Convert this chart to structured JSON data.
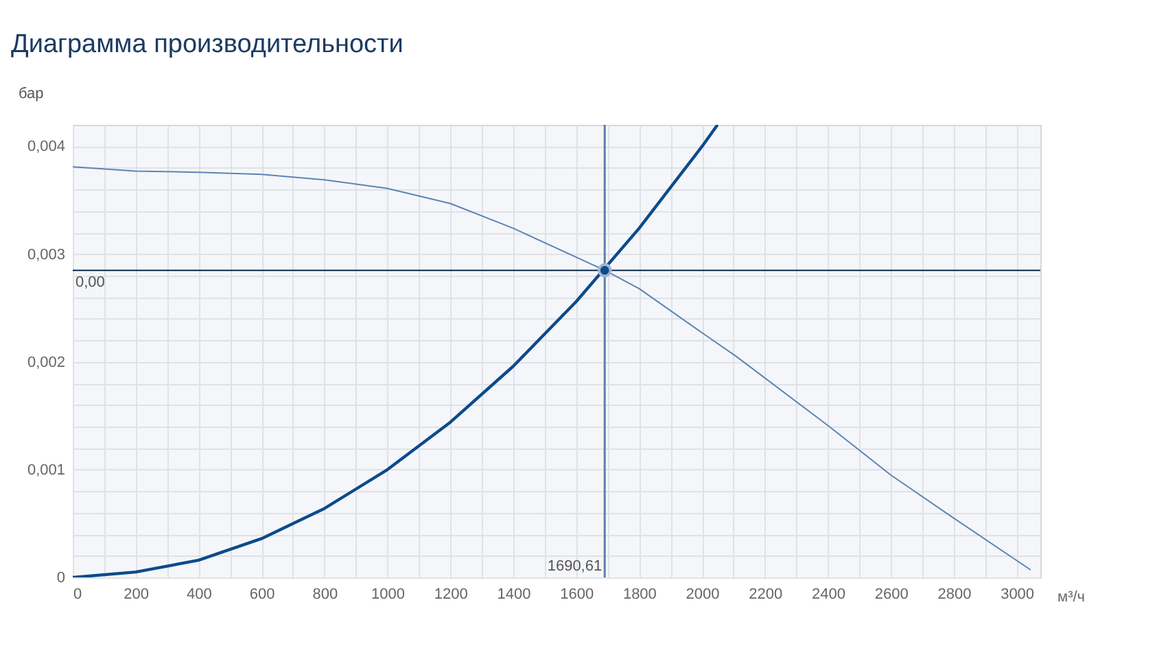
{
  "chart_data": {
    "type": "line",
    "title": "Диаграмма производительности",
    "xlabel": "м³/ч",
    "ylabel": "бар",
    "xlim": [
      0,
      3075
    ],
    "ylim": [
      0,
      0.0042
    ],
    "xticks": [
      0,
      {
        "value": 100,
        "label": null
      },
      200,
      {
        "value": 300,
        "label": null
      },
      400,
      {
        "value": 500,
        "label": null
      },
      600,
      {
        "value": 700,
        "label": null
      },
      800,
      {
        "value": 900,
        "label": null
      },
      1000,
      {
        "value": 1100,
        "label": null
      },
      1200,
      {
        "value": 1300,
        "label": null
      },
      1400,
      {
        "value": 1500,
        "label": null
      },
      1600,
      {
        "value": 1700,
        "label": null
      },
      1800,
      {
        "value": 1900,
        "label": null
      },
      2000,
      {
        "value": 2100,
        "label": null
      },
      2200,
      {
        "value": 2300,
        "label": null
      },
      2400,
      {
        "value": 2500,
        "label": null
      },
      2600,
      {
        "value": 2700,
        "label": null
      },
      2800,
      {
        "value": 2900,
        "label": null
      },
      3000
    ],
    "yticks": [
      0,
      {
        "value": 0.0002,
        "label": null
      },
      {
        "value": 0.0004,
        "label": null
      },
      {
        "value": 0.0006,
        "label": null
      },
      {
        "value": 0.0008,
        "label": null
      },
      {
        "value": 0.001,
        "label": "0,001"
      },
      {
        "value": 0.0012,
        "label": null
      },
      {
        "value": 0.0014,
        "label": null
      },
      {
        "value": 0.0016,
        "label": null
      },
      {
        "value": 0.0018,
        "label": null
      },
      {
        "value": 0.002,
        "label": "0,002"
      },
      {
        "value": 0.0022,
        "label": null
      },
      {
        "value": 0.0024,
        "label": null
      },
      {
        "value": 0.0026,
        "label": null
      },
      {
        "value": 0.0028,
        "label": null
      },
      {
        "value": 0.003,
        "label": "0,003"
      },
      {
        "value": 0.0032,
        "label": null
      },
      {
        "value": 0.0034,
        "label": null
      },
      {
        "value": 0.0036,
        "label": null
      },
      {
        "value": 0.0038,
        "label": null
      },
      {
        "value": 0.004,
        "label": "0,004"
      }
    ],
    "grid": true,
    "series": [
      {
        "color": "#0d4a8a",
        "x": [
          0,
          200,
          400,
          600,
          800,
          1000,
          1200,
          1400,
          1600,
          1800,
          2000,
          2049
        ],
        "values": [
          0,
          5e-05,
          0.00016,
          0.00036,
          0.00064,
          0.001,
          0.00144,
          0.00196,
          0.00256,
          0.00324,
          0.004,
          0.0042
        ]
      },
      {
        "color": "#5b84b5",
        "x": [
          0,
          200,
          400,
          600,
          800,
          1000,
          1200,
          1400,
          1690.61,
          1800,
          2000,
          2109,
          2400,
          2600,
          2800,
          3044
        ],
        "values": [
          0.00381,
          0.00377,
          0.00376,
          0.00374,
          0.00369,
          0.00361,
          0.00347,
          0.00324,
          0.00285,
          0.00268,
          0.00227,
          0.00205,
          0.00141,
          0.00095,
          0.00055,
          7e-05
        ]
      },
      {
        "type": "scatter",
        "color": "#0d4a8a",
        "marker": "circle",
        "x": [
          1690.61
        ],
        "values": [
          0.00285
        ]
      }
    ],
    "ref_lines": [
      {
        "axis": "y",
        "value": 0.00285,
        "label": "0,00",
        "color": "#0d2a4a"
      },
      {
        "axis": "x",
        "value": 1690.61,
        "label": "1690,61",
        "color": "#5b7fb0"
      }
    ]
  }
}
